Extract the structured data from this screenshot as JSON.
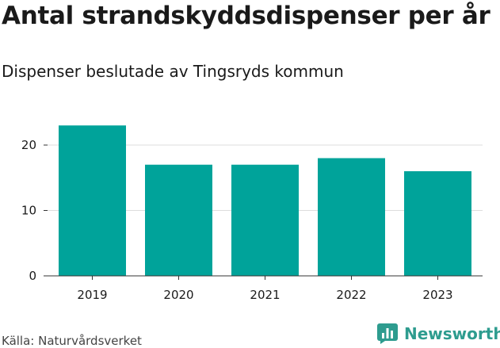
{
  "header": {
    "title": "Antal strandskyddsdispenser per år",
    "subtitle": "Dispenser beslutade av Tingsryds kommun"
  },
  "footer": {
    "source": "Källa: Naturvårdsverket",
    "brand": "Newsworthy",
    "brand_icon": "bar-chart-logo-icon"
  },
  "colors": {
    "bar": "#00a39a",
    "grid": "#dddddd",
    "axis": "#333333",
    "brand": "#2e9c8f"
  },
  "chart_data": {
    "type": "bar",
    "title": "Antal strandskyddsdispenser per år",
    "subtitle": "Dispenser beslutade av Tingsryds kommun",
    "categories": [
      "2019",
      "2020",
      "2021",
      "2022",
      "2023"
    ],
    "values": [
      23,
      17,
      17,
      18,
      16
    ],
    "xlabel": "",
    "ylabel": "",
    "ylim": [
      0,
      25
    ],
    "yticks": [
      0,
      10,
      20
    ],
    "grid": true,
    "legend": "none"
  }
}
